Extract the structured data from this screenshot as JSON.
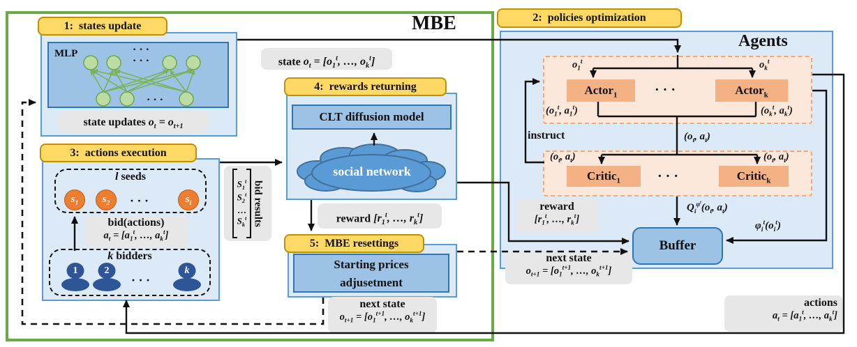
{
  "title": "MBE",
  "agents_title": "Agents",
  "steps": {
    "s1": "1:  states update",
    "s2": "2:  policies optimization",
    "s3": "3:  actions execution",
    "s4": "4:  rewards returning",
    "s5": "5:  MBE resettings"
  },
  "mbe": {
    "mlp_label": "MLP",
    "mlp_dots_top1": "· · ·",
    "mlp_dots_top2": "· · ·",
    "mlp_dots_bottom": "· · ·",
    "state_updates": {
      "prefix": "state updates ",
      "math": "o_t = o_{t+1}"
    },
    "state": {
      "prefix": "state ",
      "math": "o_t = [o_1^t, …, o_k^t]"
    },
    "seeds": {
      "title_it": "l",
      "title": " seeds",
      "items": [
        "s_1",
        "s_2",
        "s_l"
      ],
      "dots": "· · ·"
    },
    "bid": {
      "line1": "bid(actions)",
      "math": "a_t = [a_1^t, …, a_k^t]"
    },
    "bidders": {
      "title_it": "k",
      "title": " bidders",
      "items": [
        "1",
        "2",
        "k"
      ],
      "dots": "· · ·"
    },
    "bid_results": {
      "label": "bid results",
      "rows": [
        "S_1^t",
        "S_2^t",
        "…",
        "S_k^t"
      ]
    },
    "clt": "CLT diffusion model",
    "cloud": "social network",
    "reward": {
      "prefix": "reward ",
      "math": "[r_1^t, …, r_k^t]"
    },
    "starting": {
      "line1": "Starting prices",
      "line2": "adjusetment"
    },
    "next_state": {
      "line1": "next state",
      "math": "o_{t+1} = [o_1^{t+1}, …, o_k^{t+1}]"
    }
  },
  "agents": {
    "o1": "o_1^t",
    "ok": "o_k^t",
    "actor1": "Actor_1",
    "actork": "Actor_k",
    "actor_dots": "· · ·",
    "out1": "(o_1^t, a_1^t)",
    "outk": "(o_k^t, a_k^t)",
    "oa_mid": "(o_t, a_t)",
    "critic_in1": "(o_t, a_t)",
    "critic_ink": "(o_t, a_t)",
    "critic1": "Critic_1",
    "critick": "Critic_k",
    "critic_dots": "· · ·",
    "instruct": "instruct",
    "q_label": "Q_i^{φ^t}(o_t, a_t)",
    "phi_label": "φ_i^t(o_i^t)",
    "buffer": "Buffer",
    "reward": {
      "line1": "reward",
      "math": "[r_1^t, …, r_k^t]"
    },
    "next_state": {
      "line1": "next state",
      "math": "o_{t+1} = [o_1^{t+1}, …, o_k^{t+1}]"
    },
    "actions": {
      "line1": "actions",
      "math": "a_t = [a_1^t, …, a_k^t]"
    }
  },
  "colors": {
    "green_border": "#6aaa47",
    "step_label_bg": "#ffd965",
    "step_label_border": "#bf9000",
    "container_blue_bg": "#dce9f7",
    "container_blue_border": "#5b9bd5",
    "inner_blue_bg": "#9cc3e6",
    "inner_blue_border": "#2e75b6",
    "agent_orange": "#f4b183",
    "agent_panel_bg": "#fce8da",
    "seed_orange": "#ec7d31",
    "bidder_blue": "#2e5696",
    "cloud_blue": "#5b9bd5",
    "label_gray": "#e8e7e7",
    "mlp_green": "#79b356"
  }
}
